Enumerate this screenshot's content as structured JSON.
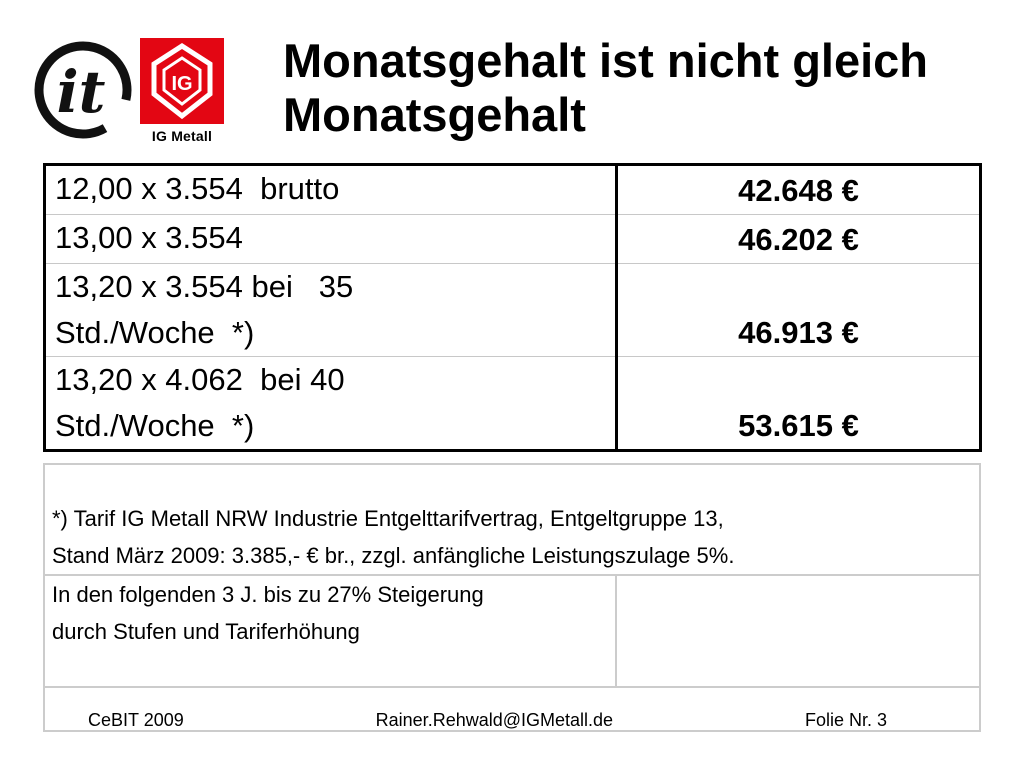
{
  "title": {
    "line1": "Monatsgehalt ist nicht gleich",
    "line2": "Monatsgehalt"
  },
  "logos": {
    "it_logo_text": "it",
    "ig_metall_text": "IG Metall"
  },
  "salary_table": {
    "rows": [
      {
        "label": "12,00 x 3.554  brutto",
        "amount": "42.648 €"
      },
      {
        "label": "13,00 x 3.554",
        "amount": "46.202 €"
      },
      {
        "label": "13,20 x 3.554 bei   35\nStd./Woche  *)",
        "amount": "46.913 €"
      },
      {
        "label": "13,20 x 4.062  bei 40\nStd./Woche  *)",
        "amount": "53.615 €"
      }
    ]
  },
  "footnote": {
    "line1": "*) Tarif IG Metall NRW Industrie Entgelttarifvertrag, Entgeltgruppe 13,",
    "line2": "Stand März 2009: 3.385,- € br., zzgl. anfängliche Leistungszulage 5%."
  },
  "info": {
    "line1": "In den folgenden 3 J. bis zu 27% Steigerung",
    "line2": "durch Stufen und Tariferhöhung"
  },
  "footer": {
    "event": "CeBIT 2009",
    "email": "Rainer.Rehwald@IGMetall.de",
    "slide": "Folie Nr. 3"
  }
}
